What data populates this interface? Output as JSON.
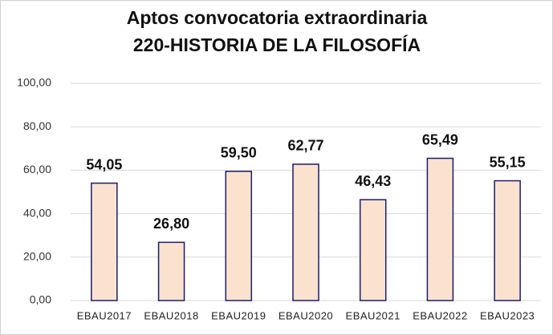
{
  "chart_data": {
    "type": "bar",
    "title": "Aptos convocatoria extraordinaria",
    "subtitle": "220-HISTORIA DE LA FILOSOFÍA",
    "categories": [
      "EBAU2017",
      "EBAU2018",
      "EBAU2019",
      "EBAU2020",
      "EBAU2021",
      "EBAU2022",
      "EBAU2023"
    ],
    "values": [
      54.05,
      26.8,
      59.5,
      62.77,
      46.43,
      65.49,
      55.15
    ],
    "value_labels": [
      "54,05",
      "26,80",
      "59,50",
      "62,77",
      "46,43",
      "65,49",
      "55,15"
    ],
    "color": "#fbe2cf",
    "edge_color": "#1c1c6b",
    "ylim": [
      0,
      100
    ],
    "yticks": [
      {
        "value": 0,
        "label": "0,00"
      },
      {
        "value": 20,
        "label": "20,00"
      },
      {
        "value": 40,
        "label": "40,00"
      },
      {
        "value": 60,
        "label": "60,00"
      },
      {
        "value": 80,
        "label": "80,00"
      },
      {
        "value": 100,
        "label": "100,00"
      }
    ],
    "grid": true
  }
}
